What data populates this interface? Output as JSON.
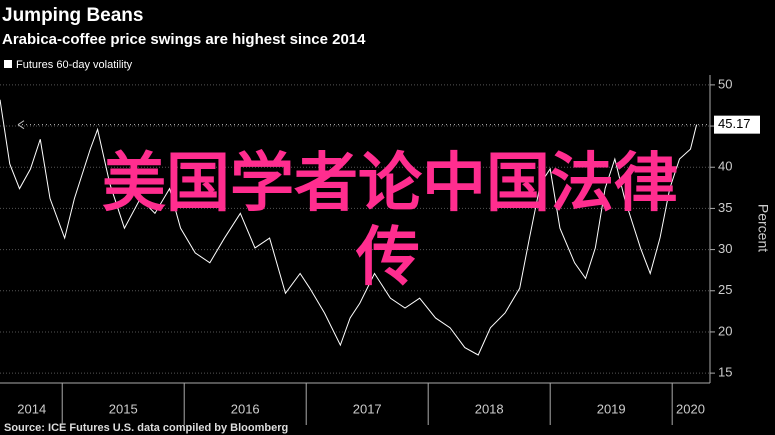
{
  "chart_data": {
    "type": "line",
    "title": "Jumping Beans",
    "subtitle": "Arabica-coffee price swings are highest since 2014",
    "y_label": "Percent",
    "source": "Source: ICE Futures U.S. data compiled by Bloomberg",
    "overlay_text": [
      "美国学者论中国法律",
      "传"
    ],
    "annotation": 45.17,
    "x": [
      2014.49,
      2014.57,
      2014.65,
      2014.74,
      2014.82,
      2014.9,
      2015.02,
      2015.1,
      2015.23,
      2015.29,
      2015.39,
      2015.51,
      2015.64,
      2015.76,
      2015.88,
      2015.97,
      2016.09,
      2016.21,
      2016.33,
      2016.46,
      2016.58,
      2016.7,
      2016.83,
      2016.95,
      2017.03,
      2017.15,
      2017.28,
      2017.36,
      2017.44,
      2017.56,
      2017.69,
      2017.81,
      2017.93,
      2018.06,
      2018.18,
      2018.3,
      2018.41,
      2018.51,
      2018.63,
      2018.75,
      2018.83,
      2018.92,
      2019.0,
      2019.08,
      2019.2,
      2019.29,
      2019.37,
      2019.45,
      2019.53,
      2019.61,
      2019.74,
      2019.82,
      2019.9,
      2019.98,
      2020.06,
      2020.15,
      2020.2
    ],
    "series": [
      {
        "name": "Futures 60-day volatility",
        "color": "#ffffff",
        "values": [
          48.2,
          40.4,
          37.4,
          39.8,
          43.4,
          36.2,
          31.4,
          36.2,
          42.2,
          44.6,
          38,
          32.6,
          36.2,
          34.4,
          37.4,
          32.6,
          29.6,
          28.4,
          31.4,
          34.4,
          30.2,
          31.4,
          24.7,
          27.1,
          25.3,
          22.3,
          18.4,
          21.7,
          23.5,
          27.1,
          24.1,
          22.9,
          24.1,
          21.7,
          20.5,
          18.1,
          17.2,
          20.5,
          22.3,
          25.3,
          31.4,
          38,
          39.8,
          32.6,
          28.4,
          26.5,
          30.2,
          37.4,
          41,
          36.2,
          30.2,
          27.1,
          31.4,
          37.4,
          41,
          42.2,
          45.17
        ]
      }
    ],
    "xlim": [
      2014.49,
      2020.31
    ],
    "xticks": [
      {
        "value": 2014.75,
        "label": "2014"
      },
      {
        "value": 2015.5,
        "label": "2015"
      },
      {
        "value": 2016.5,
        "label": "2016"
      },
      {
        "value": 2017.5,
        "label": "2017"
      },
      {
        "value": 2018.5,
        "label": "2018"
      },
      {
        "value": 2019.5,
        "label": "2019"
      },
      {
        "value": 2020.15,
        "label": "2020"
      }
    ],
    "ylim": [
      13.8,
      51.2
    ],
    "yticks": [
      15,
      20,
      25,
      30,
      35,
      40,
      45,
      50
    ],
    "grid": true
  }
}
